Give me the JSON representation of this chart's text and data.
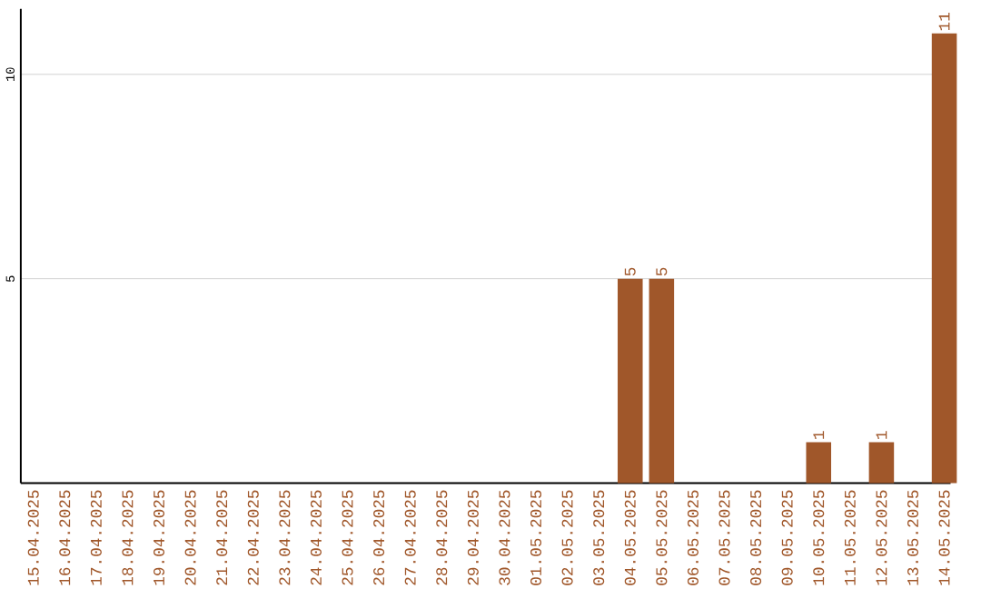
{
  "chart_data": {
    "type": "bar",
    "categories": [
      "15.04.2025",
      "16.04.2025",
      "17.04.2025",
      "18.04.2025",
      "19.04.2025",
      "20.04.2025",
      "21.04.2025",
      "22.04.2025",
      "23.04.2025",
      "24.04.2025",
      "25.04.2025",
      "26.04.2025",
      "27.04.2025",
      "28.04.2025",
      "29.04.2025",
      "30.04.2025",
      "01.05.2025",
      "02.05.2025",
      "03.05.2025",
      "04.05.2025",
      "05.05.2025",
      "06.05.2025",
      "07.05.2025",
      "08.05.2025",
      "09.05.2025",
      "10.05.2025",
      "11.05.2025",
      "12.05.2025",
      "13.05.2025",
      "14.05.2025"
    ],
    "values": [
      0,
      0,
      0,
      0,
      0,
      0,
      0,
      0,
      0,
      0,
      0,
      0,
      0,
      0,
      0,
      0,
      0,
      0,
      0,
      5,
      5,
      0,
      0,
      0,
      0,
      1,
      0,
      1,
      0,
      11
    ],
    "value_labels": [
      null,
      null,
      null,
      null,
      null,
      null,
      null,
      null,
      null,
      null,
      null,
      null,
      null,
      null,
      null,
      null,
      null,
      null,
      null,
      "5",
      "5",
      null,
      null,
      null,
      null,
      "1",
      null,
      "1",
      null,
      "11"
    ],
    "color": "#a0572a",
    "ylim": [
      0,
      11.6
    ],
    "yticks": [
      5,
      10
    ],
    "grid": "y"
  }
}
